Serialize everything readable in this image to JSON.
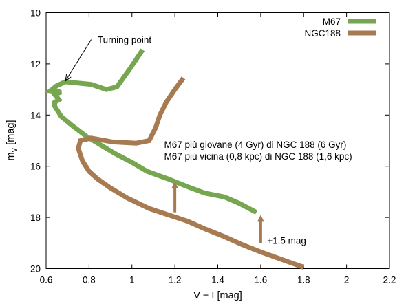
{
  "chart_data": {
    "type": "line",
    "xlabel": "V − I [mag]",
    "ylabel_main": "m",
    "ylabel_sub": "V",
    "ylabel_unit": " [mag]",
    "xlim": [
      0.6,
      2.2
    ],
    "ylim": [
      20,
      10
    ],
    "y_inverted": true,
    "grid": false,
    "legend_position": "top-right",
    "x_ticks": [
      0.6,
      0.8,
      1,
      1.2,
      1.4,
      1.6,
      1.8,
      2,
      2.2
    ],
    "x_tick_labels": [
      "0.6",
      "0.8",
      "1",
      "1.2",
      "1.4",
      "1.6",
      "1.8",
      "2",
      "2.2"
    ],
    "y_ticks": [
      10,
      12,
      14,
      16,
      18,
      20
    ],
    "y_tick_labels": [
      "10",
      "12",
      "14",
      "16",
      "18",
      "20"
    ],
    "series": [
      {
        "name": "M67",
        "color": "#76a650",
        "points": [
          [
            1.05,
            11.45
          ],
          [
            0.99,
            12.2
          ],
          [
            0.93,
            12.9
          ],
          [
            0.88,
            13.0
          ],
          [
            0.81,
            12.8
          ],
          [
            0.69,
            12.7
          ],
          [
            0.65,
            12.85
          ],
          [
            0.62,
            13.05
          ],
          [
            0.67,
            13.1
          ],
          [
            0.64,
            13.2
          ],
          [
            0.66,
            13.4
          ],
          [
            0.64,
            13.5
          ],
          [
            0.64,
            13.65
          ],
          [
            0.67,
            14.05
          ],
          [
            0.72,
            14.4
          ],
          [
            0.79,
            14.85
          ],
          [
            0.86,
            15.2
          ],
          [
            0.92,
            15.5
          ],
          [
            1.0,
            15.85
          ],
          [
            1.07,
            16.2
          ],
          [
            1.17,
            16.5
          ],
          [
            1.26,
            16.8
          ],
          [
            1.34,
            17.05
          ],
          [
            1.43,
            17.2
          ],
          [
            1.5,
            17.45
          ],
          [
            1.58,
            17.8
          ]
        ]
      },
      {
        "name": "NGC188",
        "color": "#a87a52",
        "points": [
          [
            1.24,
            12.55
          ],
          [
            1.2,
            13.0
          ],
          [
            1.16,
            13.5
          ],
          [
            1.13,
            14.0
          ],
          [
            1.11,
            14.5
          ],
          [
            1.08,
            15.0
          ],
          [
            1.02,
            15.1
          ],
          [
            0.91,
            15.05
          ],
          [
            0.81,
            14.9
          ],
          [
            0.76,
            15.0
          ],
          [
            0.75,
            15.3
          ],
          [
            0.77,
            15.8
          ],
          [
            0.8,
            16.2
          ],
          [
            0.84,
            16.5
          ],
          [
            0.9,
            16.85
          ],
          [
            0.98,
            17.25
          ],
          [
            1.08,
            17.65
          ],
          [
            1.17,
            17.9
          ],
          [
            1.26,
            18.15
          ],
          [
            1.34,
            18.45
          ],
          [
            1.43,
            18.75
          ],
          [
            1.51,
            19.05
          ],
          [
            1.6,
            19.35
          ],
          [
            1.7,
            19.65
          ],
          [
            1.8,
            19.95
          ]
        ]
      }
    ],
    "annotations": [
      {
        "text": "Turning point",
        "x": 0.84,
        "y": 11.05
      },
      {
        "text": "M67 più giovane (4 Gyr) di NGC 188 (6 Gyr)",
        "x": 1.15,
        "y": 15.15
      },
      {
        "text": "M67 più vicina (0,8 kpc) di NGC 188 (1,6 kpc)",
        "x": 1.15,
        "y": 15.6
      },
      {
        "text": "+1.5 mag",
        "x": 1.63,
        "y": 18.9
      }
    ],
    "turning_arrow": {
      "from": [
        0.81,
        11.05
      ],
      "to": [
        0.69,
        12.67
      ]
    },
    "shift_arrows": [
      {
        "x": 1.2,
        "y_from": 17.8,
        "y_to": 16.6
      },
      {
        "x": 1.6,
        "y_from": 19.0,
        "y_to": 17.9
      }
    ],
    "arrow_color": "#a87a52"
  }
}
